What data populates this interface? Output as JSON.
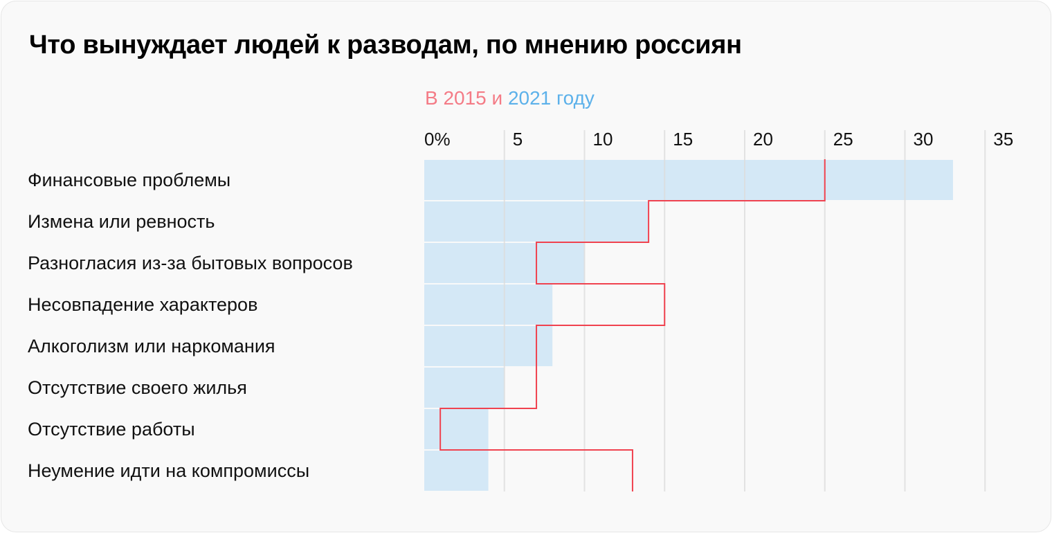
{
  "chart_data": {
    "type": "bar",
    "title": "Что вынуждает людей к разводам, по мнению россиян",
    "subtitle": {
      "prefix": "В 2015",
      "mid": " и ",
      "year2": "2021",
      "suffix": " году"
    },
    "categories": [
      "Финансовые проблемы",
      "Измена или ревность",
      "Разногласия из-за бытовых вопросов",
      "Несовпадение характеров",
      "Алкоголизм или наркомания",
      "Отсутствие своего жилья",
      "Отсутствие работы",
      "Неумение идти на компромиссы"
    ],
    "series": [
      {
        "name": "2021",
        "style": "bar",
        "color": "#d4e8f6",
        "values": [
          33,
          14,
          10,
          8,
          8,
          5,
          4,
          4
        ]
      },
      {
        "name": "2015",
        "style": "step-line",
        "color": "#f0424f",
        "values": [
          25,
          14,
          7,
          15,
          7,
          7,
          1,
          13
        ]
      }
    ],
    "xlim": [
      0,
      35
    ],
    "ticks": [
      "0%",
      "5",
      "10",
      "15",
      "20",
      "25",
      "30",
      "35"
    ],
    "grid": true,
    "grid_color": "#dcdcdc"
  }
}
